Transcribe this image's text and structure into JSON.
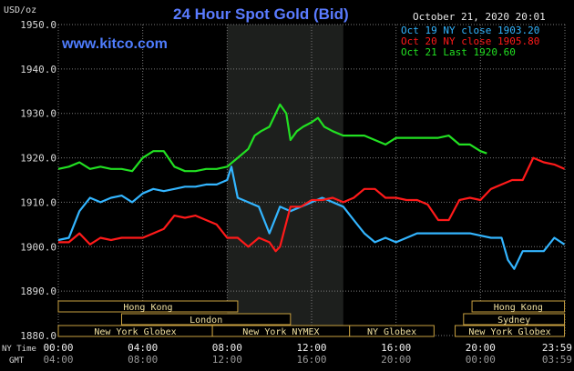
{
  "title": "24 Hour Spot Gold (Bid)",
  "site": "www.kitco.com",
  "timestamp": "October 21, 2020 20:01",
  "y_unit": "USD/oz",
  "x_row1_name": "NY Time",
  "x_row2_name": "GMT",
  "colors": {
    "oct19": "#33b5ff",
    "oct20": "#ff1a1a",
    "oct21": "#22e022",
    "grid": "#7a7a7a",
    "session_text": "#f0e0a0",
    "session_box": "#c8a040"
  },
  "chart_data": {
    "type": "line",
    "title": "24 Hour Spot Gold (Bid)",
    "ylabel": "USD/oz",
    "ylim": [
      1880,
      1950
    ],
    "xlim": [
      0,
      24
    ],
    "yticks": [
      "1950.0",
      "1940.0",
      "1930.0",
      "1920.0",
      "1910.0",
      "1900.0",
      "1890.0",
      "1880.0"
    ],
    "xticks_ny": [
      "00:00",
      "04:00",
      "08:00",
      "12:00",
      "16:00",
      "20:00",
      "23:59"
    ],
    "xticks_gmt": [
      "04:00",
      "08:00",
      "12:00",
      "16:00",
      "20:00",
      "00:00",
      "03:59"
    ],
    "grid": true,
    "legend_position": "top-right",
    "series": [
      {
        "name": "Oct 19 NY close 1903.20",
        "x": [
          0,
          0.5,
          1,
          1.5,
          2,
          2.5,
          3,
          3.5,
          4,
          4.5,
          5,
          5.5,
          6,
          6.5,
          7,
          7.5,
          8,
          8.2,
          8.5,
          9,
          9.5,
          10,
          10.5,
          11,
          11.5,
          12,
          12.5,
          13,
          13.5,
          14,
          14.5,
          15,
          15.5,
          16,
          16.5,
          17,
          17.5,
          18,
          18.5,
          19,
          19.5,
          20,
          20.5,
          21,
          21.3,
          21.6,
          22,
          22.5,
          23,
          23.5,
          23.98
        ],
        "values": [
          1901.5,
          1902,
          1908,
          1911,
          1910,
          1911,
          1911.5,
          1910,
          1912,
          1913,
          1912.5,
          1913,
          1913.5,
          1913.5,
          1914,
          1914,
          1915,
          1918,
          1911,
          1910,
          1909,
          1903,
          1909,
          1908,
          1909,
          1910,
          1911,
          1910,
          1909,
          1906,
          1903,
          1901,
          1902,
          1901,
          1902,
          1903,
          1903,
          1903,
          1903,
          1903,
          1903,
          1902.5,
          1902,
          1902,
          1897,
          1895,
          1899,
          1899,
          1899,
          1902,
          1900.5
        ]
      },
      {
        "name": "Oct 20 NY close 1905.80",
        "x": [
          0,
          0.5,
          1,
          1.5,
          2,
          2.5,
          3,
          3.5,
          4,
          4.5,
          5,
          5.5,
          6,
          6.5,
          7,
          7.5,
          8,
          8.5,
          9,
          9.5,
          10,
          10.3,
          10.5,
          11,
          11.5,
          12,
          12.5,
          13,
          13.5,
          14,
          14.5,
          15,
          15.5,
          16,
          16.5,
          17,
          17.5,
          18,
          18.5,
          19,
          19.5,
          20,
          20.5,
          21,
          21.5,
          22,
          22.5,
          23,
          23.5,
          23.98
        ],
        "values": [
          1901,
          1901,
          1903,
          1900.5,
          1902,
          1901.5,
          1902,
          1902,
          1902,
          1903,
          1904,
          1907,
          1906.5,
          1907,
          1906,
          1905,
          1902,
          1902,
          1900,
          1902,
          1901,
          1899,
          1900,
          1909,
          1909,
          1910.5,
          1910.5,
          1911,
          1910,
          1911,
          1913,
          1913,
          1911,
          1911,
          1910.5,
          1910.5,
          1909.5,
          1906,
          1906,
          1910.5,
          1911,
          1910.5,
          1913,
          1914,
          1915,
          1915,
          1920,
          1919,
          1918.5,
          1917.5
        ]
      },
      {
        "name": "Oct 21 Last 1920.60",
        "x": [
          0,
          0.5,
          1,
          1.5,
          2,
          2.5,
          3,
          3.5,
          4,
          4.5,
          5,
          5.5,
          6,
          6.5,
          7,
          7.5,
          8,
          8.5,
          9,
          9.3,
          9.6,
          10,
          10.5,
          10.8,
          11,
          11.3,
          11.6,
          12,
          12.3,
          12.6,
          13,
          13.5,
          14,
          14.5,
          15,
          15.5,
          16,
          16.5,
          17,
          17.5,
          18,
          18.5,
          19,
          19.5,
          20,
          20.3
        ],
        "values": [
          1917.5,
          1918,
          1919,
          1917.5,
          1918,
          1917.5,
          1917.5,
          1917,
          1920,
          1921.5,
          1921.5,
          1918,
          1917,
          1917,
          1917.5,
          1917.5,
          1918,
          1920,
          1922,
          1925,
          1926,
          1927,
          1932,
          1930,
          1924,
          1926,
          1927,
          1928,
          1929,
          1927,
          1926,
          1925,
          1925,
          1925,
          1924,
          1923,
          1924.5,
          1924.5,
          1924.5,
          1924.5,
          1924.5,
          1925,
          1923,
          1923,
          1921.5,
          1921
        ]
      }
    ],
    "shaded_region": [
      8,
      13.5
    ]
  },
  "sessions": {
    "row1": [
      {
        "label": "Hong Kong",
        "start": 0,
        "end": 8.5
      },
      {
        "label": "Hong Kong",
        "start": 19.6,
        "end": 23.98
      }
    ],
    "row2": [
      {
        "label": "London",
        "start": 3,
        "end": 11
      },
      {
        "label": "Sydney",
        "start": 19.2,
        "end": 23.98
      }
    ],
    "row3": [
      {
        "label": "New York Globex",
        "start": 0,
        "end": 7.3
      },
      {
        "label": "New York NYMEX",
        "start": 7.3,
        "end": 13.8
      },
      {
        "label": "NY Globex",
        "start": 13.8,
        "end": 17.8
      },
      {
        "label": "New York Globex",
        "start": 18.8,
        "end": 23.98
      }
    ]
  }
}
